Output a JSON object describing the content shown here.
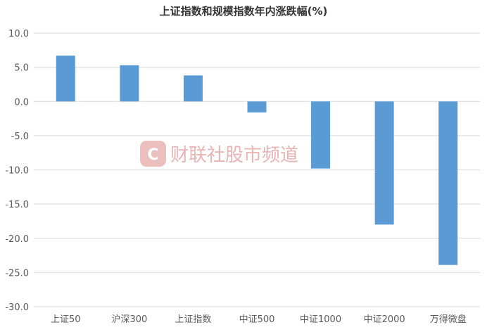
{
  "chart_data": {
    "type": "bar",
    "title": "上证指数和规模指数年内涨跌幅(%)",
    "xlabel": "",
    "ylabel": "",
    "categories": [
      "上证50",
      "沪深300",
      "上证指数",
      "中证500",
      "中证1000",
      "中证2000",
      "万得微盘"
    ],
    "values": [
      6.7,
      5.3,
      3.8,
      -1.6,
      -9.8,
      -18.0,
      -23.9
    ],
    "ylim": [
      -30,
      10
    ],
    "yticks": [
      "10.0",
      "5.0",
      "0.0",
      "-5.0",
      "-10.0",
      "-15.0",
      "-20.0",
      "-25.0",
      "-30.0"
    ],
    "ytick_values": [
      10,
      5,
      0,
      -5,
      -10,
      -15,
      -20,
      -25,
      -30
    ],
    "grid": true,
    "legend": "none",
    "bar_color": "#5b9bd5",
    "grid_color": "#d9d9d9"
  },
  "watermark": {
    "logo_letter": "C",
    "text": "财联社股市频道",
    "color": "#e9b4b4"
  }
}
